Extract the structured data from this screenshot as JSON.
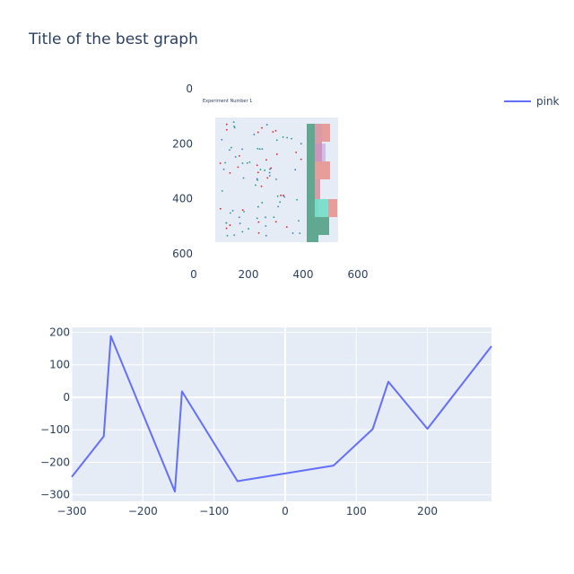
{
  "title": "Title of the best graph",
  "legend": {
    "label": "pink",
    "color": "#636efa"
  },
  "chart_data": [
    {
      "type": "image",
      "x_ticks": [
        "0",
        "200",
        "400",
        "600"
      ],
      "y_ticks": [
        "0",
        "200",
        "400",
        "600"
      ],
      "xlim": [
        -70,
        640
      ],
      "ylim": [
        640,
        -10
      ],
      "embedded_image": {
        "title": "Experiment Number 1",
        "description": "Thumbnail of a scatter plot with side histogram; its tiny text is unreadable."
      }
    },
    {
      "type": "line",
      "series": [
        {
          "name": "pink",
          "color": "#636efa",
          "x": [
            -300,
            -255,
            -245,
            -155,
            -145,
            -67,
            68,
            123,
            145,
            200,
            290
          ],
          "y": [
            -245,
            -120,
            188,
            -290,
            18,
            -258,
            -210,
            -98,
            48,
            -97,
            157
          ]
        }
      ],
      "x_ticks": [
        -300,
        -200,
        -100,
        0,
        100,
        200
      ],
      "y_ticks": [
        200,
        100,
        0,
        -100,
        -200,
        -300
      ],
      "xlim": [
        -300,
        290
      ],
      "ylim": [
        -320,
        215
      ],
      "grid": true
    }
  ]
}
